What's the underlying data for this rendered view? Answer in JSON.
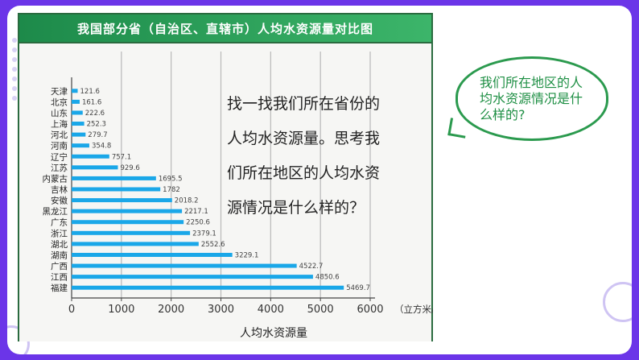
{
  "slide": {
    "title": "我国部分省（自治区、直辖市）人均水资源量对比图",
    "prompt_lines": [
      "找一找我们所在省份的",
      "人均水资源量。思考我",
      "们所在地区的人均水资",
      "源情况是什么样的？"
    ],
    "bubble_text": "我们所在地区的人均水资源情况是什么样的?"
  },
  "colors": {
    "bar": "#1aa7e8",
    "title_bar": "#2a9a52",
    "bubble_border": "#2b9a4e",
    "bubble_text": "#1e8f44",
    "background": "#6b35e8"
  },
  "chart_data": {
    "type": "bar",
    "orientation": "horizontal",
    "title": "我国部分省（自治区、直辖市）人均水资源量对比图",
    "xlabel": "人均水资源量",
    "unit_label": "（立方米/人·年）",
    "xlim": [
      0,
      6000
    ],
    "xticks": [
      0,
      1000,
      2000,
      3000,
      4000,
      5000,
      6000
    ],
    "grid": true,
    "categories": [
      "天津",
      "北京",
      "山东",
      "上海",
      "河北",
      "河南",
      "辽宁",
      "江苏",
      "内蒙古",
      "吉林",
      "安徽",
      "黑龙江",
      "广东",
      "浙江",
      "湖北",
      "湖南",
      "广西",
      "江西",
      "福建"
    ],
    "values": [
      121.6,
      161.6,
      222.6,
      252.3,
      279.7,
      354.8,
      757.1,
      929.6,
      1695.5,
      1782,
      2018.2,
      2217.1,
      2250.6,
      2379.1,
      2552.6,
      3229.1,
      4522.7,
      4850.6,
      5469.7
    ],
    "value_labels": [
      "121.6",
      "161.6",
      "222.6",
      "252.3",
      "279.7",
      "354.8",
      "757.1",
      "929.6",
      "1695.5",
      "1782",
      "2018.2",
      "2217.1",
      "2250.6",
      "2379.1",
      "2552.6",
      "3229.1",
      "4522.7",
      "4850.6",
      "5469.7"
    ]
  }
}
